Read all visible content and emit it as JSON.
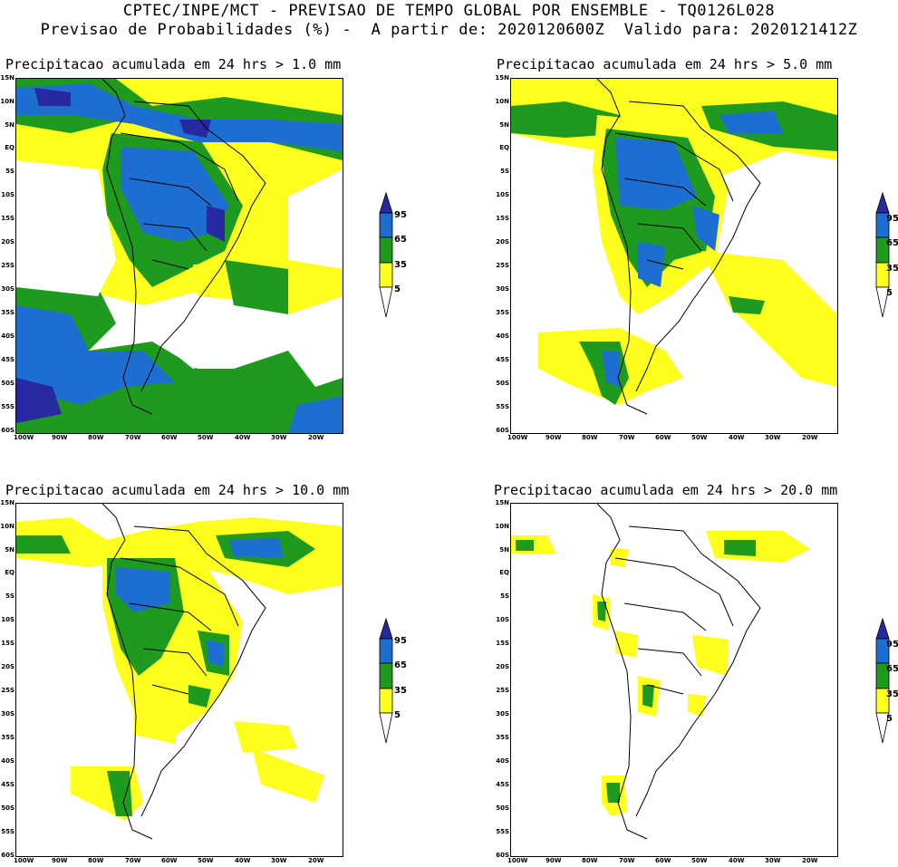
{
  "header": {
    "line1": "CPTEC/INPE/MCT - PREVISAO DE TEMPO GLOBAL POR ENSEMBLE - TQ0126L028",
    "line2": "Previsao de Probabilidades (%) -  A partir de: 2020120600Z  Valido para: 2020121412Z"
  },
  "colors": {
    "yellow": "#ffff1e",
    "green": "#1e9a1e",
    "blue": "#1e6ed2",
    "navy": "#2828a0",
    "white": "#ffffff"
  },
  "axes": {
    "lat_labels": [
      "15N",
      "10N",
      "5N",
      "EQ",
      "5S",
      "10S",
      "15S",
      "20S",
      "25S",
      "30S",
      "35S",
      "40S",
      "45S",
      "50S",
      "55S",
      "60S"
    ],
    "lon_labels": [
      "100W",
      "90W",
      "80W",
      "70W",
      "60W",
      "50W",
      "40W",
      "30W",
      "20W"
    ]
  },
  "colorbar": {
    "levels": [
      "95",
      "65",
      "35",
      "5"
    ]
  },
  "panels": [
    {
      "title": "Precipitacao acumulada em 24 hrs > 1.0 mm",
      "threshold": "1.0 mm"
    },
    {
      "title": "Precipitacao acumulada em 24 hrs > 5.0 mm",
      "threshold": "5.0 mm"
    },
    {
      "title": "Precipitacao acumulada em 24 hrs > 10.0 mm",
      "threshold": "10.0 mm"
    },
    {
      "title": "Precipitacao acumulada em 24 hrs > 20.0 mm",
      "threshold": "20.0 mm"
    }
  ]
}
